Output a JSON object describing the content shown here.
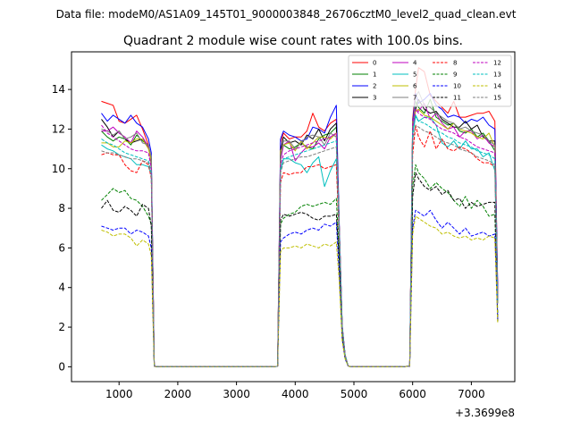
{
  "figure": {
    "suptitle": "Data file: modeM0/AS1A09_145T01_9000003848_26706cztM0_level2_quad_clean.evt",
    "title": "Quadrant 2 module wise count rates with 100.0s bins.",
    "x_offset_label": "+3.3699e8"
  },
  "chart_data": {
    "type": "line",
    "title": "Quadrant 2 module wise count rates with 100.0s bins.",
    "xlabel": "",
    "ylabel": "",
    "x_offset": "+3.3699e8",
    "xlim": [
      190,
      7740
    ],
    "ylim": [
      -0.75,
      15.9
    ],
    "xticks": [
      1000,
      2000,
      3000,
      4000,
      5000,
      6000,
      7000
    ],
    "yticks": [
      0,
      2,
      4,
      6,
      8,
      10,
      12,
      14
    ],
    "grid": false,
    "legend": {
      "placement": "top-right",
      "ncol": 4
    },
    "x": [
      700,
      800,
      900,
      1000,
      1100,
      1200,
      1300,
      1400,
      1500,
      1550,
      1600,
      1650,
      1700,
      1800,
      2000,
      2200,
      2400,
      2600,
      2800,
      3000,
      3200,
      3400,
      3600,
      3700,
      3750,
      3800,
      3900,
      4000,
      4100,
      4200,
      4300,
      4400,
      4500,
      4600,
      4700,
      4750,
      4800,
      4850,
      4900,
      4950,
      5000,
      5200,
      5400,
      5600,
      5800,
      5950,
      6000,
      6050,
      6100,
      6200,
      6300,
      6400,
      6500,
      6600,
      6700,
      6800,
      6900,
      7000,
      7100,
      7200,
      7300,
      7400,
      7450
    ],
    "series": [
      {
        "name": "0",
        "color": "#ff0000",
        "dash": false,
        "values": [
          13.4,
          13.3,
          13.2,
          12.4,
          12.3,
          12.5,
          12.7,
          12.0,
          11.2,
          10.2,
          0.04,
          0,
          0,
          0,
          0,
          0,
          0,
          0,
          0,
          0,
          0,
          0,
          0,
          0.02,
          11.3,
          11.8,
          11.5,
          11.6,
          11.6,
          11.9,
          12.8,
          12.1,
          11.9,
          12.3,
          12.5,
          7.0,
          2.0,
          0.6,
          0.05,
          0,
          0,
          0,
          0,
          0,
          0,
          0.03,
          12.5,
          14.0,
          15.1,
          14.9,
          13.7,
          13.4,
          13.1,
          12.8,
          13.4,
          12.6,
          12.6,
          12.7,
          12.8,
          12.8,
          12.9,
          12.4,
          3.8
        ]
      },
      {
        "name": "1",
        "color": "#008000",
        "dash": false,
        "values": [
          11.9,
          11.6,
          11.4,
          11.6,
          11.5,
          11.2,
          11.7,
          11.4,
          11.2,
          10.2,
          0.03,
          0,
          0,
          0,
          0,
          0,
          0,
          0,
          0,
          0,
          0,
          0,
          0,
          0.02,
          10.6,
          11.2,
          11.0,
          11.1,
          11.3,
          11.1,
          11.0,
          11.5,
          11.7,
          11.8,
          12.1,
          7.0,
          2.0,
          0.6,
          0.05,
          0,
          0,
          0,
          0,
          0,
          0,
          0.03,
          12.0,
          13.4,
          13.1,
          12.8,
          13.5,
          12.6,
          12.4,
          12.2,
          12.3,
          11.9,
          11.8,
          12.0,
          11.6,
          11.8,
          11.4,
          10.9,
          3.4
        ]
      },
      {
        "name": "2",
        "color": "#0000ff",
        "dash": false,
        "values": [
          12.8,
          12.4,
          12.7,
          12.5,
          12.3,
          12.7,
          12.3,
          12.1,
          11.5,
          10.8,
          0.04,
          0,
          0,
          0,
          0,
          0,
          0,
          0,
          0,
          0,
          0,
          0,
          0,
          0.02,
          11.5,
          11.9,
          11.7,
          11.6,
          11.4,
          11.5,
          12.1,
          12.0,
          11.8,
          12.6,
          13.2,
          7.2,
          2.1,
          0.6,
          0.05,
          0,
          0,
          0,
          0,
          0,
          0,
          0.03,
          12.3,
          13.8,
          13.3,
          13.5,
          13.8,
          13.2,
          13.0,
          12.6,
          12.7,
          12.6,
          12.3,
          12.5,
          12.4,
          12.6,
          12.2,
          12.0,
          3.9
        ]
      },
      {
        "name": "3",
        "color": "#000000",
        "dash": false,
        "values": [
          12.5,
          12.1,
          11.6,
          11.9,
          11.5,
          11.3,
          11.4,
          11.5,
          11.1,
          10.5,
          0.03,
          0,
          0,
          0,
          0,
          0,
          0,
          0,
          0,
          0,
          0,
          0,
          0,
          0.02,
          10.9,
          11.6,
          11.3,
          11.4,
          11.2,
          11.7,
          11.5,
          12.0,
          11.4,
          12.0,
          12.3,
          7.0,
          2.0,
          0.6,
          0.05,
          0,
          0,
          0,
          0,
          0,
          0,
          0.03,
          11.7,
          13.0,
          13.5,
          13.0,
          12.8,
          12.9,
          12.5,
          12.3,
          12.1,
          12.1,
          12.4,
          12.0,
          12.2,
          11.6,
          11.4,
          11.4,
          3.5
        ]
      },
      {
        "name": "4",
        "color": "#bf00bf",
        "dash": false,
        "values": [
          11.9,
          11.9,
          12.1,
          11.8,
          11.6,
          11.3,
          11.9,
          11.6,
          11.1,
          10.3,
          0.03,
          0,
          0,
          0,
          0,
          0,
          0,
          0,
          0,
          0,
          0,
          0,
          0,
          0.02,
          10.4,
          11.2,
          11.4,
          10.4,
          10.8,
          11.1,
          11.1,
          11.3,
          11.0,
          11.6,
          11.8,
          7.0,
          2.0,
          0.6,
          0.05,
          0,
          0,
          0,
          0,
          0,
          0,
          0.03,
          11.8,
          13.0,
          12.9,
          13.3,
          12.5,
          12.8,
          12.3,
          12.0,
          12.1,
          11.6,
          11.9,
          11.9,
          11.5,
          11.7,
          11.3,
          11.1,
          3.6
        ]
      },
      {
        "name": "5",
        "color": "#00bfbf",
        "dash": false,
        "values": [
          11.2,
          11.0,
          10.9,
          10.7,
          10.6,
          10.5,
          10.2,
          10.2,
          10.1,
          9.7,
          0.03,
          0,
          0,
          0,
          0,
          0,
          0,
          0,
          0,
          0,
          0,
          0,
          0,
          0.02,
          9.9,
          10.5,
          10.5,
          10.3,
          10.2,
          9.8,
          10.3,
          10.6,
          9.1,
          9.9,
          10.5,
          6.7,
          1.9,
          0.6,
          0.05,
          0,
          0,
          0,
          0,
          0,
          0,
          0.03,
          11.7,
          12.7,
          12.4,
          12.6,
          12.6,
          12.2,
          11.3,
          11.1,
          11.4,
          11.0,
          11.4,
          11.0,
          11.0,
          10.6,
          10.8,
          9.9,
          3.2
        ]
      },
      {
        "name": "6",
        "color": "#bfbf00",
        "dash": false,
        "values": [
          11.3,
          11.3,
          11.1,
          11.1,
          11.4,
          11.3,
          11.5,
          11.5,
          11.0,
          10.4,
          0.03,
          0,
          0,
          0,
          0,
          0,
          0,
          0,
          0,
          0,
          0,
          0,
          0,
          0.02,
          10.9,
          11.2,
          11.3,
          10.9,
          11.4,
          11.0,
          11.3,
          11.6,
          11.6,
          11.5,
          11.8,
          7.0,
          2.0,
          0.6,
          0.05,
          0,
          0,
          0,
          0,
          0,
          0,
          0.03,
          12.3,
          12.9,
          13.0,
          12.7,
          12.6,
          12.4,
          12.2,
          12.0,
          12.3,
          12.0,
          11.9,
          11.8,
          11.6,
          11.5,
          11.8,
          11.1,
          3.4
        ]
      },
      {
        "name": "7",
        "color": "#7f7f7f",
        "dash": false,
        "values": [
          12.0,
          11.9,
          11.7,
          11.9,
          11.5,
          11.6,
          11.8,
          11.3,
          11.2,
          10.6,
          0.03,
          0,
          0,
          0,
          0,
          0,
          0,
          0,
          0,
          0,
          0,
          0,
          0,
          0.02,
          10.6,
          11.4,
          11.4,
          11.0,
          11.3,
          11.6,
          11.7,
          11.6,
          11.2,
          11.8,
          11.6,
          7.0,
          2.0,
          0.6,
          0.05,
          0,
          0,
          0,
          0,
          0,
          0,
          0.03,
          12.0,
          13.6,
          13.9,
          13.2,
          13.1,
          12.8,
          12.6,
          12.4,
          12.3,
          12.0,
          12.1,
          11.9,
          11.8,
          11.7,
          11.4,
          11.2,
          3.5
        ]
      },
      {
        "name": "8",
        "color": "#ff0000",
        "dash": true,
        "values": [
          10.7,
          10.8,
          10.7,
          10.7,
          10.2,
          9.9,
          9.8,
          10.4,
          10.2,
          9.5,
          0.03,
          0,
          0,
          0,
          0,
          0,
          0,
          0,
          0,
          0,
          0,
          0,
          0,
          0.02,
          9.3,
          9.8,
          9.7,
          9.8,
          9.8,
          10.1,
          10.1,
          10.2,
          10.0,
          10.1,
          10.2,
          6.5,
          1.8,
          0.5,
          0.05,
          0,
          0,
          0,
          0,
          0,
          0,
          0.03,
          10.7,
          12.2,
          11.6,
          11.1,
          11.9,
          11.0,
          11.5,
          11.0,
          10.9,
          11.1,
          11.0,
          10.8,
          10.5,
          10.3,
          10.3,
          10.1,
          3.2
        ]
      },
      {
        "name": "9",
        "color": "#008000",
        "dash": true,
        "values": [
          8.4,
          8.7,
          9.0,
          8.8,
          8.9,
          8.5,
          8.4,
          8.1,
          7.6,
          7.2,
          0.02,
          0,
          0,
          0,
          0,
          0,
          0,
          0,
          0,
          0,
          0,
          0,
          0,
          0.02,
          7.2,
          7.5,
          7.7,
          7.8,
          8.1,
          8.2,
          8.1,
          8.2,
          8.3,
          8.2,
          8.5,
          5.6,
          1.6,
          0.5,
          0.05,
          0,
          0,
          0,
          0,
          0,
          0,
          0.03,
          9.1,
          10.2,
          9.8,
          9.5,
          9.0,
          9.3,
          9.0,
          8.8,
          8.4,
          8.1,
          8.6,
          8.0,
          8.4,
          8.1,
          7.6,
          7.7,
          2.6
        ]
      },
      {
        "name": "10",
        "color": "#0000ff",
        "dash": true,
        "values": [
          7.1,
          7.0,
          6.9,
          7.0,
          7.0,
          6.7,
          6.9,
          6.8,
          6.6,
          6.0,
          0.02,
          0,
          0,
          0,
          0,
          0,
          0,
          0,
          0,
          0,
          0,
          0,
          0,
          0.02,
          6.3,
          6.5,
          6.7,
          6.8,
          6.7,
          6.9,
          7.0,
          6.9,
          7.2,
          7.1,
          7.3,
          4.8,
          1.4,
          0.4,
          0.05,
          0,
          0,
          0,
          0,
          0,
          0,
          0.03,
          7.0,
          7.9,
          7.8,
          7.6,
          7.9,
          7.4,
          7.0,
          7.3,
          7.0,
          6.7,
          7.0,
          6.6,
          6.7,
          6.8,
          6.6,
          6.7,
          2.4
        ]
      },
      {
        "name": "11",
        "color": "#000000",
        "dash": true,
        "values": [
          8.0,
          8.4,
          7.9,
          7.8,
          8.1,
          7.9,
          7.6,
          8.2,
          8.0,
          7.1,
          0.02,
          0,
          0,
          0,
          0,
          0,
          0,
          0,
          0,
          0,
          0,
          0,
          0,
          0.02,
          7.4,
          7.7,
          7.6,
          7.7,
          7.8,
          7.7,
          7.5,
          7.4,
          7.6,
          7.6,
          7.7,
          5.4,
          1.6,
          0.5,
          0.05,
          0,
          0,
          0,
          0,
          0,
          0,
          0.03,
          8.6,
          9.8,
          9.5,
          9.1,
          8.9,
          9.1,
          8.7,
          8.9,
          8.4,
          8.5,
          8.0,
          8.3,
          8.1,
          8.2,
          8.3,
          8.3,
          2.3
        ]
      },
      {
        "name": "12",
        "color": "#bf00bf",
        "dash": true,
        "values": [
          12.2,
          11.8,
          11.6,
          11.4,
          11.2,
          11.0,
          10.9,
          10.9,
          10.8,
          10.0,
          0.03,
          0,
          0,
          0,
          0,
          0,
          0,
          0,
          0,
          0,
          0,
          0,
          0,
          0.02,
          10.2,
          10.7,
          10.9,
          11.0,
          11.1,
          11.2,
          11.3,
          11.4,
          11.5,
          11.6,
          11.8,
          7.0,
          2.0,
          0.6,
          0.05,
          0,
          0,
          0,
          0,
          0,
          0,
          0.03,
          12.2,
          13.0,
          12.8,
          12.6,
          12.5,
          12.2,
          12.0,
          11.9,
          11.8,
          11.6,
          11.5,
          11.3,
          11.1,
          11.0,
          10.9,
          10.8,
          3.4
        ]
      },
      {
        "name": "13",
        "color": "#00bfbf",
        "dash": true,
        "values": [
          11.5,
          11.3,
          11.2,
          11.0,
          10.8,
          10.7,
          10.6,
          10.5,
          10.4,
          9.8,
          0.03,
          0,
          0,
          0,
          0,
          0,
          0,
          0,
          0,
          0,
          0,
          0,
          0,
          0.02,
          10.0,
          10.5,
          10.6,
          10.7,
          10.8,
          10.9,
          11.0,
          11.1,
          11.2,
          11.3,
          11.4,
          6.9,
          2.0,
          0.6,
          0.05,
          0,
          0,
          0,
          0,
          0,
          0,
          0.03,
          11.8,
          12.6,
          12.4,
          12.3,
          12.1,
          11.9,
          11.8,
          11.6,
          11.5,
          11.3,
          11.2,
          11.1,
          10.9,
          10.8,
          10.7,
          10.5,
          3.3
        ]
      },
      {
        "name": "14",
        "color": "#bfbf00",
        "dash": true,
        "values": [
          6.9,
          6.8,
          6.6,
          6.7,
          6.7,
          6.5,
          6.1,
          6.4,
          6.2,
          5.6,
          0.02,
          0,
          0,
          0,
          0,
          0,
          0,
          0,
          0,
          0,
          0,
          0,
          0,
          0.02,
          5.8,
          6.0,
          6.0,
          6.1,
          6.0,
          6.2,
          6.1,
          6.0,
          6.2,
          6.1,
          6.3,
          4.3,
          1.3,
          0.4,
          0.05,
          0,
          0,
          0,
          0,
          0,
          0,
          0.03,
          6.7,
          7.6,
          7.5,
          7.3,
          7.1,
          7.0,
          6.7,
          6.8,
          6.6,
          6.5,
          6.6,
          6.4,
          6.5,
          6.4,
          6.6,
          6.5,
          2.2
        ]
      },
      {
        "name": "15",
        "color": "#7f7f7f",
        "dash": true,
        "values": [
          10.9,
          10.8,
          10.8,
          10.7,
          10.6,
          10.5,
          10.5,
          10.4,
          10.3,
          9.6,
          0.03,
          0,
          0,
          0,
          0,
          0,
          0,
          0,
          0,
          0,
          0,
          0,
          0,
          0.02,
          9.8,
          10.3,
          10.4,
          10.5,
          10.6,
          10.6,
          10.7,
          10.8,
          10.9,
          11.0,
          11.1,
          6.8,
          1.9,
          0.6,
          0.05,
          0,
          0,
          0,
          0,
          0,
          0,
          0.03,
          11.4,
          12.2,
          12.1,
          11.9,
          11.8,
          11.6,
          11.4,
          11.3,
          11.2,
          11.0,
          10.9,
          10.8,
          10.6,
          10.5,
          10.4,
          10.2,
          3.2
        ]
      }
    ]
  }
}
